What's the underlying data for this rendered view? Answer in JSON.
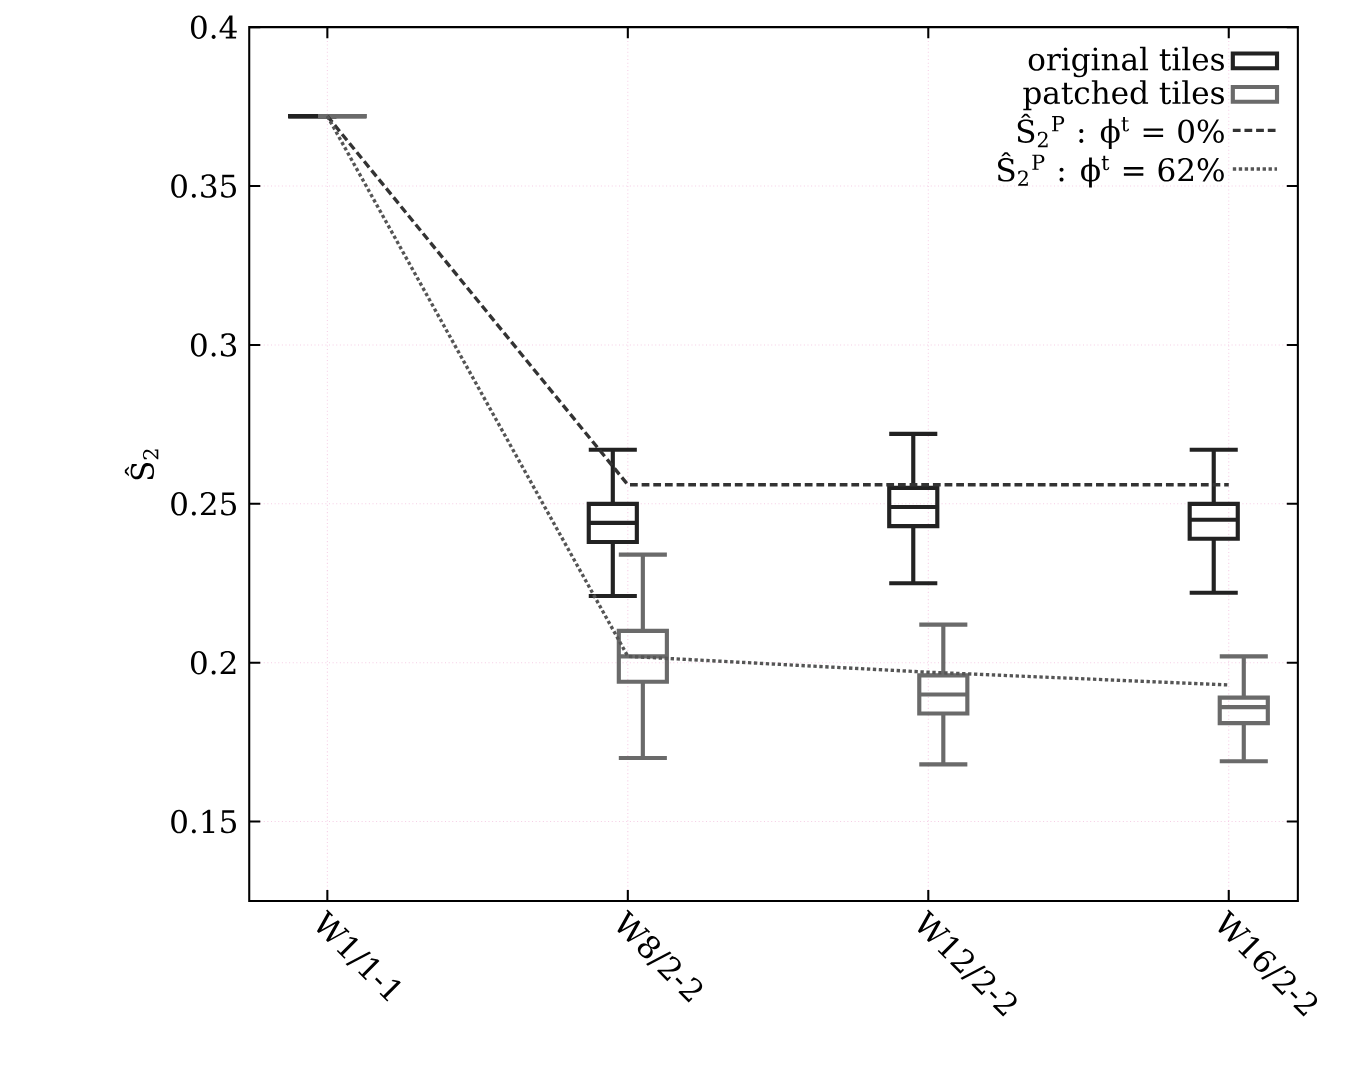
{
  "chart_data": {
    "type": "box",
    "ylabel": "Ŝ$_{2}$",
    "categories": [
      "W1/1-1",
      "W8/2-2",
      "W12/2-2",
      "W16/2-2"
    ],
    "series": [
      {
        "name": "original tiles",
        "color": "#222222",
        "boxes": [
          {
            "low": 0.372,
            "q1": 0.372,
            "median": 0.372,
            "q3": 0.372,
            "high": 0.372
          },
          {
            "low": 0.221,
            "q1": 0.238,
            "median": 0.244,
            "q3": 0.25,
            "high": 0.267
          },
          {
            "low": 0.225,
            "q1": 0.243,
            "median": 0.249,
            "q3": 0.255,
            "high": 0.272
          },
          {
            "low": 0.222,
            "q1": 0.239,
            "median": 0.245,
            "q3": 0.25,
            "high": 0.267
          }
        ]
      },
      {
        "name": "patched tiles",
        "color": "#6a6a6a",
        "boxes": [
          {
            "low": 0.372,
            "q1": 0.372,
            "median": 0.372,
            "q3": 0.372,
            "high": 0.372
          },
          {
            "low": 0.17,
            "q1": 0.194,
            "median": 0.202,
            "q3": 0.21,
            "high": 0.234
          },
          {
            "low": 0.168,
            "q1": 0.184,
            "median": 0.19,
            "q3": 0.196,
            "high": 0.212
          },
          {
            "low": 0.169,
            "q1": 0.181,
            "median": 0.186,
            "q3": 0.189,
            "high": 0.202
          }
        ]
      },
      {
        "name": "Ŝ$_{2}$$^{P}$ : ϕ$^{t}$ = 0%",
        "type": "line",
        "color": "#333333",
        "line_style": "dashed",
        "values": [
          0.372,
          0.256,
          0.256,
          0.256
        ]
      },
      {
        "name": "Ŝ$_{2}$$^{P}$ : ϕ$^{t}$ = 62%",
        "type": "line",
        "color": "#555555",
        "line_style": "dotted",
        "values": [
          0.372,
          0.202,
          0.197,
          0.193
        ]
      }
    ],
    "ylim": [
      0.125,
      0.4
    ],
    "yticks": [
      0.15,
      0.2,
      0.25,
      0.3,
      0.35,
      0.4
    ],
    "grid": true,
    "legend": "top right"
  }
}
